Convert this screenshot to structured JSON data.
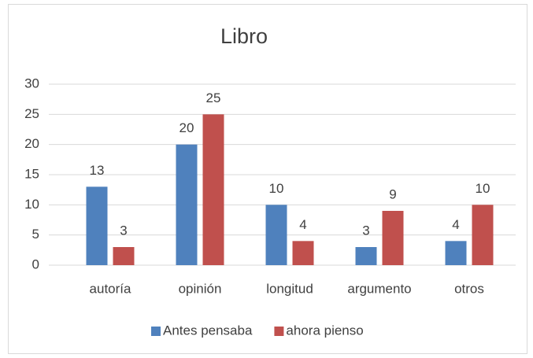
{
  "chart_data": {
    "type": "bar",
    "title": "Libro",
    "categories": [
      "autoría",
      "opinión",
      "longitud",
      "argumento",
      "otros"
    ],
    "series": [
      {
        "name": "Antes pensaba",
        "color": "#4f81bd",
        "values": [
          13,
          20,
          10,
          3,
          4
        ]
      },
      {
        "name": "ahora pienso",
        "color": "#c0504d",
        "values": [
          3,
          25,
          4,
          9,
          10
        ]
      }
    ],
    "ylim": [
      0,
      30
    ],
    "yticks": [
      0,
      5,
      10,
      15,
      20,
      25,
      30
    ],
    "grid": true,
    "legend": "bottom"
  }
}
